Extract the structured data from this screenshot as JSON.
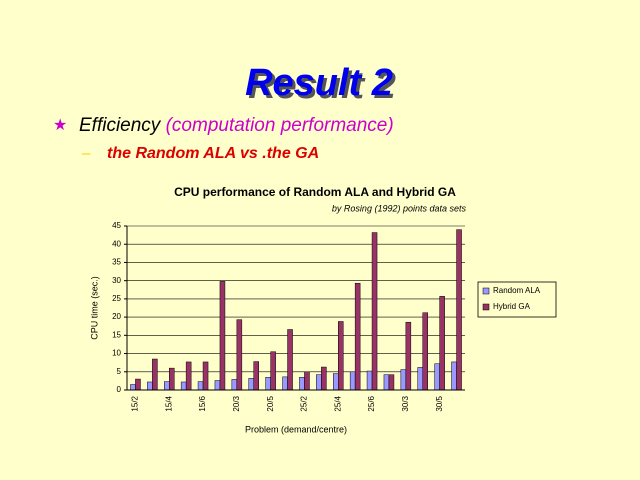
{
  "slide": {
    "title": "Result 2",
    "bullet": {
      "text": "Efficiency",
      "paren": "(computation performance)"
    },
    "sub_bullet": "the Random ALA vs .the GA"
  },
  "chart_data": {
    "type": "bar",
    "title": "CPU performance of Random ALA and Hybrid GA",
    "subtitle": "by Rosing (1992) points data sets",
    "x_label": "Problem (demand/centre)",
    "y_label": "CPU time (sec.)",
    "categories": [
      "15/2",
      null,
      "15/4",
      null,
      "15/6",
      null,
      "20/3",
      null,
      "20/5",
      null,
      "25/2",
      null,
      "25/4",
      null,
      "25/6",
      null,
      "30/3",
      null,
      "30/5",
      null
    ],
    "series": [
      {
        "name": "Random ALA",
        "color": "#9999ff",
        "values": [
          1.5,
          2.2,
          2.3,
          2.2,
          2.3,
          2.6,
          2.9,
          3.2,
          3.5,
          3.6,
          3.5,
          4.2,
          4.5,
          5,
          5.2,
          4.2,
          5.6,
          6.2,
          7.2,
          7.7
        ]
      },
      {
        "name": "Hybrid GA",
        "color": "#993366",
        "values": [
          3,
          8.5,
          6,
          7.7,
          7.7,
          29.8,
          19.3,
          7.8,
          10.5,
          16.6,
          5,
          6.3,
          18.8,
          29.3,
          43.2,
          4.2,
          18.6,
          21.2,
          25.7,
          44
        ]
      }
    ],
    "ylim": [
      0,
      45
    ],
    "yticks": [
      0,
      5,
      10,
      15,
      20,
      25,
      30,
      35,
      40,
      45
    ],
    "grid": true,
    "legend": "right"
  }
}
